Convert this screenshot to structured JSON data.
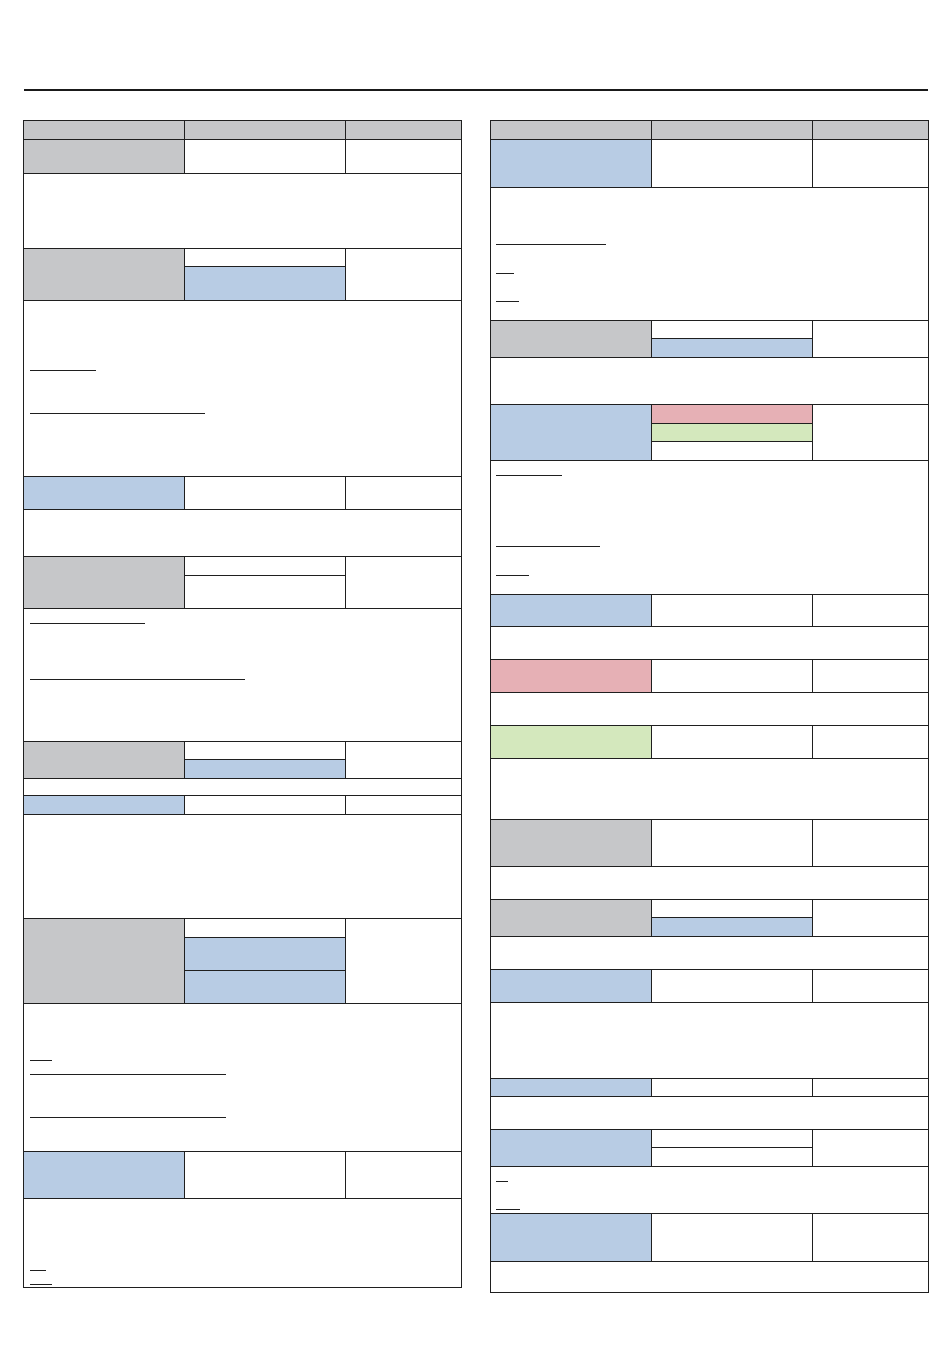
{
  "document": {
    "title": "",
    "header_rule": true
  },
  "colors": {
    "gray": "#c6c7c9",
    "blue": "#b8cce4",
    "red": "#e6b0b5",
    "green": "#d4e8bd",
    "line": "#1f1f1f"
  },
  "left_column": {
    "headers": [
      "",
      "",
      ""
    ]
  },
  "right_column": {
    "headers": [
      "",
      "",
      ""
    ]
  }
}
